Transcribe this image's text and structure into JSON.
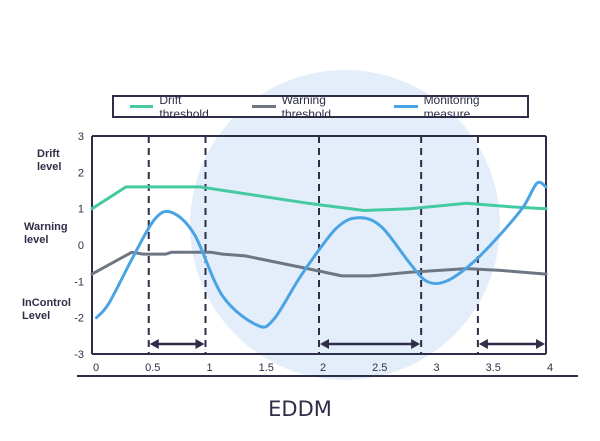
{
  "title": "EDDM",
  "side_labels": {
    "drift": "Drift\nlevel",
    "warning": "Warning\nlevel",
    "incontrol": "InControl\nLevel"
  },
  "colors": {
    "drift": "#44c9a1",
    "warning": "#6f7683",
    "monitoring": "#4aa4e4",
    "frame": "#2e2e48",
    "backdrop": "#e4eefb"
  },
  "chart_data": {
    "type": "line",
    "title": "EDDM",
    "xlabel": "",
    "ylabel": "",
    "xlim": [
      0,
      4
    ],
    "ylim": [
      -3,
      3
    ],
    "x_ticks": [
      "0",
      "0.5",
      "1",
      "1.5",
      "2",
      "2.5",
      "3",
      "3.5",
      "4"
    ],
    "x_tick_values": [
      0,
      0.5,
      1,
      1.5,
      2,
      2.5,
      3,
      3.5,
      4
    ],
    "y_ticks": [
      "3",
      "2",
      "1",
      "0",
      "-1",
      "-2",
      "-3"
    ],
    "y_tick_values": [
      3,
      2,
      1,
      0,
      -1,
      -2,
      -3
    ],
    "grid": false,
    "legend_position": "top",
    "series": [
      {
        "name": "Drift threshold",
        "color_key": "drift",
        "points": [
          [
            0,
            1.0
          ],
          [
            0.3,
            1.6
          ],
          [
            0.95,
            1.6
          ],
          [
            1.9,
            1.15
          ],
          [
            2.4,
            0.95
          ],
          [
            2.8,
            1.0
          ],
          [
            3.3,
            1.15
          ],
          [
            3.7,
            1.05
          ],
          [
            4,
            1.0
          ]
        ]
      },
      {
        "name": "Warning threshold",
        "color_key": "warning",
        "points": [
          [
            0,
            -0.8
          ],
          [
            0.35,
            -0.2
          ],
          [
            0.45,
            -0.25
          ],
          [
            0.65,
            -0.25
          ],
          [
            0.7,
            -0.2
          ],
          [
            1.05,
            -0.2
          ],
          [
            1.15,
            -0.25
          ],
          [
            1.35,
            -0.3
          ],
          [
            1.9,
            -0.65
          ],
          [
            2.2,
            -0.85
          ],
          [
            2.45,
            -0.85
          ],
          [
            2.8,
            -0.75
          ],
          [
            3.3,
            -0.65
          ],
          [
            3.6,
            -0.7
          ],
          [
            4,
            -0.8
          ]
        ]
      },
      {
        "name": "Monitoring measure",
        "color_key": "monitoring",
        "points": [
          [
            0.04,
            -2.0
          ],
          [
            0.15,
            -1.6
          ],
          [
            0.35,
            -0.4
          ],
          [
            0.55,
            0.7
          ],
          [
            0.7,
            0.9
          ],
          [
            0.9,
            0.3
          ],
          [
            1.15,
            -1.4
          ],
          [
            1.45,
            -2.2
          ],
          [
            1.6,
            -2.05
          ],
          [
            1.85,
            -0.8
          ],
          [
            2.15,
            0.45
          ],
          [
            2.35,
            0.75
          ],
          [
            2.55,
            0.5
          ],
          [
            2.8,
            -0.5
          ],
          [
            2.95,
            -1.0
          ],
          [
            3.12,
            -1.0
          ],
          [
            3.35,
            -0.5
          ],
          [
            3.6,
            0.3
          ],
          [
            3.8,
            1.05
          ],
          [
            3.92,
            1.7
          ],
          [
            4,
            1.6
          ]
        ]
      }
    ],
    "vertical_markers": [
      0.5,
      1.0,
      2.0,
      2.9,
      3.4
    ],
    "intervals": [
      [
        0.5,
        1.0
      ],
      [
        2.0,
        2.9
      ],
      [
        3.4,
        4.0
      ]
    ]
  }
}
